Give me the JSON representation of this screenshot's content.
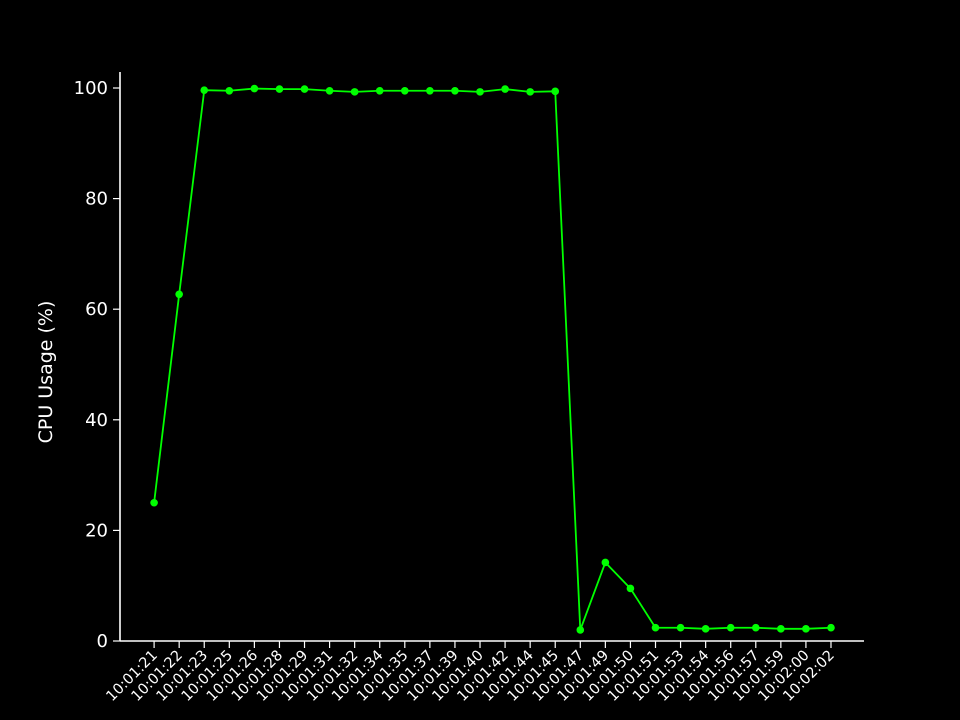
{
  "colors": {
    "background": "#000000",
    "axis": "#ffffff",
    "text": "#ffffff",
    "series": "#00ff00"
  },
  "chart_data": {
    "type": "line",
    "title": "",
    "xlabel": "",
    "ylabel": "CPU Usage (%)",
    "ylim": [
      0,
      100
    ],
    "yticks": [
      0,
      20,
      40,
      60,
      80,
      100
    ],
    "grid": false,
    "legend": "none",
    "x": [
      "10:01:21",
      "10:01:22",
      "10:01:23",
      "10:01:25",
      "10:01:26",
      "10:01:28",
      "10:01:29",
      "10:01:31",
      "10:01:32",
      "10:01:34",
      "10:01:35",
      "10:01:37",
      "10:01:39",
      "10:01:40",
      "10:01:42",
      "10:01:44",
      "10:01:45",
      "10:01:47",
      "10:01:49",
      "10:01:50",
      "10:01:51",
      "10:01:53",
      "10:01:54",
      "10:01:56",
      "10:01:57",
      "10:01:59",
      "10:02:00",
      "10:02:02"
    ],
    "series": [
      {
        "color": "#00ff00",
        "marker": "circle",
        "values": [
          25.0,
          62.7,
          99.6,
          99.5,
          99.9,
          99.8,
          99.8,
          99.5,
          99.3,
          99.5,
          99.5,
          99.5,
          99.5,
          99.3,
          99.8,
          99.3,
          99.4,
          2.0,
          14.2,
          9.5,
          2.4,
          2.4,
          2.2,
          2.4,
          2.4,
          2.2,
          2.2,
          2.4
        ]
      }
    ]
  }
}
